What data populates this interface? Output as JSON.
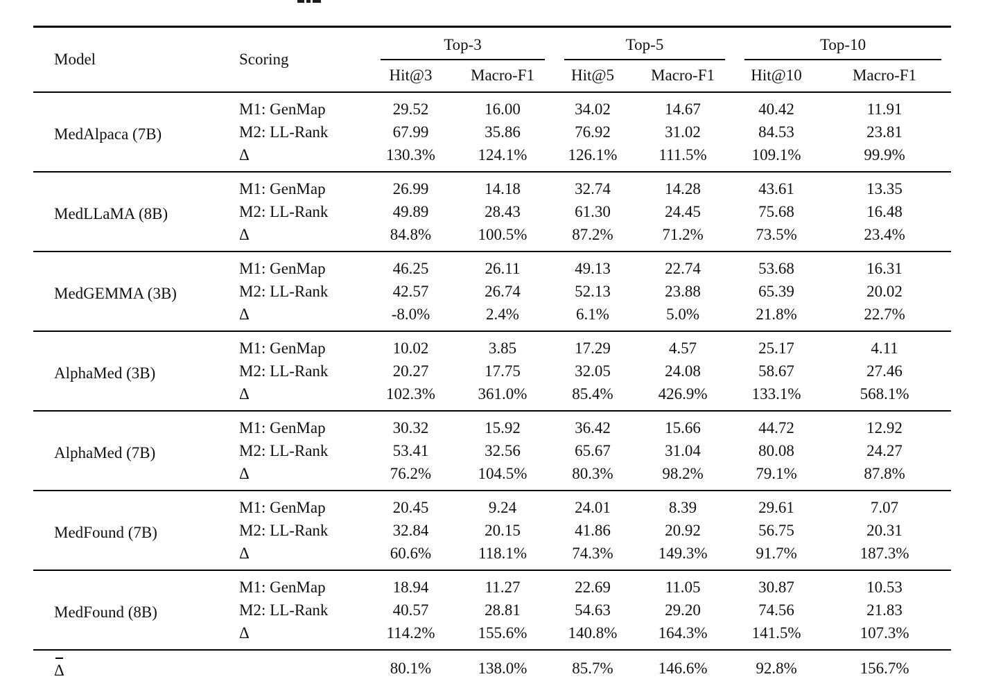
{
  "table": {
    "headers": {
      "model": "Model",
      "scoring": "Scoring",
      "groups": [
        {
          "label": "Top-3",
          "cols": [
            "Hit@3",
            "Macro-F1"
          ]
        },
        {
          "label": "Top-5",
          "cols": [
            "Hit@5",
            "Macro-F1"
          ]
        },
        {
          "label": "Top-10",
          "cols": [
            "Hit@10",
            "Macro-F1"
          ]
        }
      ]
    },
    "blocks": [
      {
        "model": "MedAlpaca (7B)",
        "rows": [
          {
            "scoring": "M1: GenMap",
            "values": [
              "29.52",
              "16.00",
              "34.02",
              "14.67",
              "40.42",
              "11.91"
            ]
          },
          {
            "scoring": "M2: LL-Rank",
            "values": [
              "67.99",
              "35.86",
              "76.92",
              "31.02",
              "84.53",
              "23.81"
            ]
          },
          {
            "scoring": "Δ",
            "values": [
              "130.3%",
              "124.1%",
              "126.1%",
              "111.5%",
              "109.1%",
              "99.9%"
            ]
          }
        ]
      },
      {
        "model": "MedLLaMA (8B)",
        "rows": [
          {
            "scoring": "M1: GenMap",
            "values": [
              "26.99",
              "14.18",
              "32.74",
              "14.28",
              "43.61",
              "13.35"
            ]
          },
          {
            "scoring": "M2: LL-Rank",
            "values": [
              "49.89",
              "28.43",
              "61.30",
              "24.45",
              "75.68",
              "16.48"
            ]
          },
          {
            "scoring": "Δ",
            "values": [
              "84.8%",
              "100.5%",
              "87.2%",
              "71.2%",
              "73.5%",
              "23.4%"
            ]
          }
        ]
      },
      {
        "model": "MedGEMMA (3B)",
        "rows": [
          {
            "scoring": "M1: GenMap",
            "values": [
              "46.25",
              "26.11",
              "49.13",
              "22.74",
              "53.68",
              "16.31"
            ]
          },
          {
            "scoring": "M2: LL-Rank",
            "values": [
              "42.57",
              "26.74",
              "52.13",
              "23.88",
              "65.39",
              "20.02"
            ]
          },
          {
            "scoring": "Δ",
            "values": [
              "-8.0%",
              "2.4%",
              "6.1%",
              "5.0%",
              "21.8%",
              "22.7%"
            ]
          }
        ]
      },
      {
        "model": "AlphaMed (3B)",
        "rows": [
          {
            "scoring": "M1: GenMap",
            "values": [
              "10.02",
              "3.85",
              "17.29",
              "4.57",
              "25.17",
              "4.11"
            ]
          },
          {
            "scoring": "M2: LL-Rank",
            "values": [
              "20.27",
              "17.75",
              "32.05",
              "24.08",
              "58.67",
              "27.46"
            ]
          },
          {
            "scoring": "Δ",
            "values": [
              "102.3%",
              "361.0%",
              "85.4%",
              "426.9%",
              "133.1%",
              "568.1%"
            ]
          }
        ]
      },
      {
        "model": "AlphaMed (7B)",
        "rows": [
          {
            "scoring": "M1: GenMap",
            "values": [
              "30.32",
              "15.92",
              "36.42",
              "15.66",
              "44.72",
              "12.92"
            ]
          },
          {
            "scoring": "M2: LL-Rank",
            "values": [
              "53.41",
              "32.56",
              "65.67",
              "31.04",
              "80.08",
              "24.27"
            ]
          },
          {
            "scoring": "Δ",
            "values": [
              "76.2%",
              "104.5%",
              "80.3%",
              "98.2%",
              "79.1%",
              "87.8%"
            ]
          }
        ]
      },
      {
        "model": "MedFound (7B)",
        "rows": [
          {
            "scoring": "M1: GenMap",
            "values": [
              "20.45",
              "9.24",
              "24.01",
              "8.39",
              "29.61",
              "7.07"
            ]
          },
          {
            "scoring": "M2: LL-Rank",
            "values": [
              "32.84",
              "20.15",
              "41.86",
              "20.92",
              "56.75",
              "20.31"
            ]
          },
          {
            "scoring": "Δ",
            "values": [
              "60.6%",
              "118.1%",
              "74.3%",
              "149.3%",
              "91.7%",
              "187.3%"
            ]
          }
        ]
      },
      {
        "model": "MedFound (8B)",
        "rows": [
          {
            "scoring": "M1: GenMap",
            "values": [
              "18.94",
              "11.27",
              "22.69",
              "11.05",
              "30.87",
              "10.53"
            ]
          },
          {
            "scoring": "M2: LL-Rank",
            "values": [
              "40.57",
              "28.81",
              "54.63",
              "29.20",
              "74.56",
              "21.83"
            ]
          },
          {
            "scoring": "Δ",
            "values": [
              "114.2%",
              "155.6%",
              "140.8%",
              "164.3%",
              "141.5%",
              "107.3%"
            ]
          }
        ]
      }
    ],
    "summary": {
      "label": "Δ",
      "values": [
        "80.1%",
        "138.0%",
        "85.7%",
        "146.6%",
        "92.8%",
        "156.7%"
      ]
    }
  }
}
